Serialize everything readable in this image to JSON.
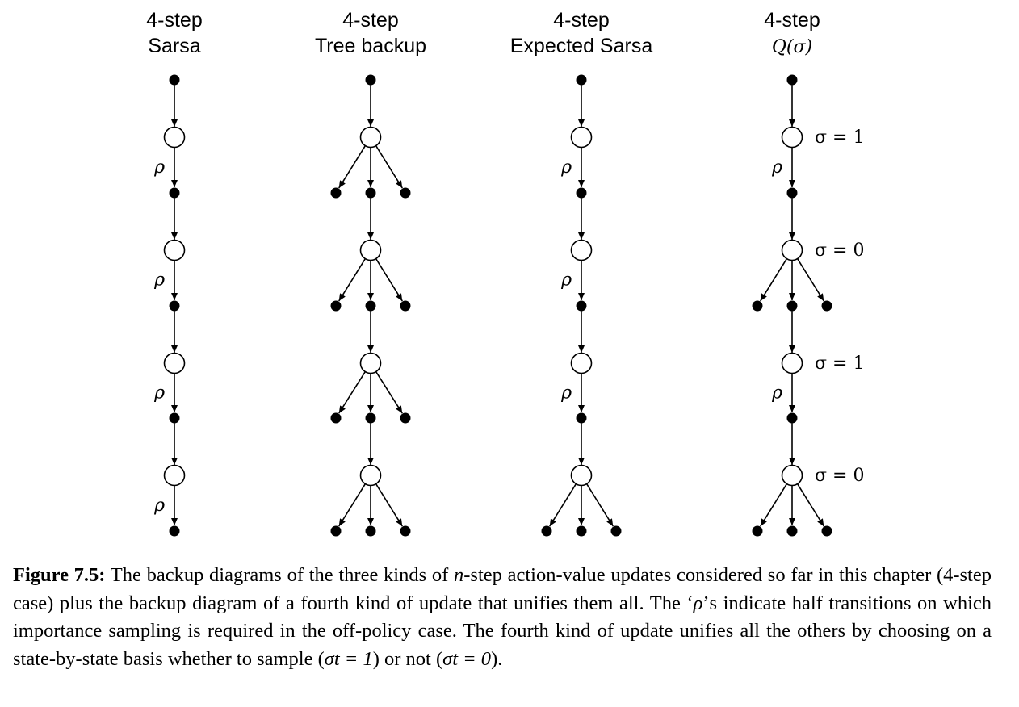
{
  "columns": [
    {
      "title_line1": "4-step",
      "title_line2": "Sarsa",
      "title_math": false,
      "levels": [
        {
          "branch": false,
          "rho": true,
          "sigma": ""
        },
        {
          "branch": false,
          "rho": true,
          "sigma": ""
        },
        {
          "branch": false,
          "rho": true,
          "sigma": ""
        },
        {
          "branch": false,
          "rho": true,
          "sigma": ""
        }
      ]
    },
    {
      "title_line1": "4-step",
      "title_line2": "Tree backup",
      "title_math": false,
      "levels": [
        {
          "branch": true,
          "rho": false,
          "sigma": ""
        },
        {
          "branch": true,
          "rho": false,
          "sigma": ""
        },
        {
          "branch": true,
          "rho": false,
          "sigma": ""
        },
        {
          "branch": true,
          "rho": false,
          "sigma": ""
        }
      ]
    },
    {
      "title_line1": "4-step",
      "title_line2": "Expected Sarsa",
      "title_math": false,
      "levels": [
        {
          "branch": false,
          "rho": true,
          "sigma": ""
        },
        {
          "branch": false,
          "rho": true,
          "sigma": ""
        },
        {
          "branch": false,
          "rho": true,
          "sigma": ""
        },
        {
          "branch": true,
          "rho": false,
          "sigma": ""
        }
      ]
    },
    {
      "title_line1": "4-step",
      "title_line2": "Q(σ)",
      "title_math": true,
      "levels": [
        {
          "branch": false,
          "rho": true,
          "sigma": "σ = 1"
        },
        {
          "branch": true,
          "rho": false,
          "sigma": "σ = 0"
        },
        {
          "branch": false,
          "rho": true,
          "sigma": "σ = 1"
        },
        {
          "branch": true,
          "rho": false,
          "sigma": "σ = 0"
        }
      ]
    }
  ],
  "rho_symbol": "ρ",
  "caption": {
    "label": "Figure 7.5:",
    "text_1": " The backup diagrams of the three kinds of ",
    "n": "n",
    "text_2": "-step action-value updates considered so far in this chapter (4-step case) plus the backup diagram of a fourth kind of update that unifies them all. The ‘",
    "rho": "ρ",
    "text_3": "’s indicate half transitions on which importance sampling is required in the off-policy case. The fourth kind of update unifies all the others by choosing on a state-by-state basis whether to sample (",
    "sample_expr": "σt = 1",
    "text_4": ") or not (",
    "nosample_expr": "σt = 0",
    "text_5": ")."
  }
}
